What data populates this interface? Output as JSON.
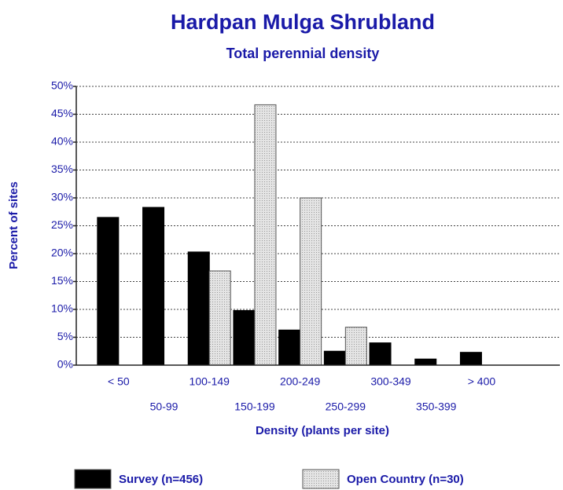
{
  "chart_data": {
    "type": "bar",
    "title": "Hardpan Mulga Shrubland",
    "subtitle": "Total perennial density",
    "y_label": "Percent of sites",
    "x_label": "Density (plants per site)",
    "categories": [
      "< 50",
      "50-99",
      "100-149",
      "150-199",
      "200-249",
      "250-299",
      "300-349",
      "350-399",
      "> 400"
    ],
    "series": [
      {
        "name": "Survey (n=456)",
        "color": "#000000",
        "values": [
          26.5,
          28.3,
          20.3,
          9.8,
          6.3,
          2.5,
          4.0,
          1.1,
          2.3
        ]
      },
      {
        "name": "Open Country (n=30)",
        "color": "#dddddd",
        "values": [
          0,
          0,
          16.9,
          46.7,
          30.0,
          6.8,
          0,
          0,
          0
        ]
      }
    ],
    "ylim": [
      0,
      50
    ],
    "yticks": [
      {
        "value": 0,
        "label": "0%"
      },
      {
        "value": 5,
        "label": "5%"
      },
      {
        "value": 10,
        "label": "10%"
      },
      {
        "value": 15,
        "label": "15%"
      },
      {
        "value": 20,
        "label": "20%"
      },
      {
        "value": 25,
        "label": "25%"
      },
      {
        "value": 30,
        "label": "30%"
      },
      {
        "value": 35,
        "label": "35%"
      },
      {
        "value": 40,
        "label": "40%"
      },
      {
        "value": 45,
        "label": "45%"
      },
      {
        "value": 50,
        "label": "50%"
      }
    ],
    "grid": true,
    "legend": "bottom"
  }
}
